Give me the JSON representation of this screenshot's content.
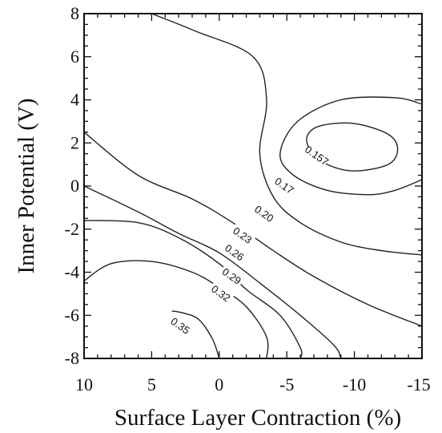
{
  "chart_data": {
    "type": "contour",
    "title": "",
    "xlabel": "Surface Layer Contraction (%)",
    "ylabel": "Inner Potential (V)",
    "xlim": [
      10,
      -15
    ],
    "ylim": [
      -8,
      8
    ],
    "x_ticks": [
      "10",
      "5",
      "0",
      "-5",
      "-10",
      "-15"
    ],
    "y_ticks": [
      "8",
      "6",
      "4",
      "2",
      "0",
      "-2",
      "-4",
      "-6",
      "-8"
    ],
    "grid": false,
    "contours": [
      {
        "level": "0.157",
        "points": [
          [
            -6.5,
            2.3
          ],
          [
            -7.5,
            2.8
          ],
          [
            -10,
            2.9
          ],
          [
            -12.5,
            2.4
          ],
          [
            -13.2,
            1.7
          ],
          [
            -12.5,
            1.0
          ],
          [
            -10,
            0.7
          ],
          [
            -8,
            1.0
          ],
          [
            -6.8,
            1.6
          ],
          [
            -6.5,
            2.3
          ]
        ],
        "closed": true,
        "label_at": [
          -7.2,
          1.4
        ]
      },
      {
        "level": "0.17",
        "points": [
          [
            -15,
            3.8
          ],
          [
            -13,
            4.1
          ],
          [
            -9,
            4.0
          ],
          [
            -5.8,
            3.0
          ],
          [
            -4.5,
            1.5
          ],
          [
            -5.5,
            0.5
          ],
          [
            -8,
            -0.2
          ],
          [
            -11,
            -0.4
          ],
          [
            -13,
            -0.2
          ],
          [
            -15,
            0.3
          ]
        ],
        "closed": false,
        "label_at": [
          -4.8,
          0.0
        ]
      },
      {
        "level": "0.20",
        "points": [
          [
            5,
            8
          ],
          [
            1.8,
            7.2
          ],
          [
            -2.5,
            6.0
          ],
          [
            -3.5,
            4.0
          ],
          [
            -3,
            1.5
          ],
          [
            -4,
            -0.5
          ],
          [
            -6,
            -1.7
          ],
          [
            -9,
            -2.6
          ],
          [
            -12,
            -3.0
          ],
          [
            -15,
            -3.2
          ]
        ],
        "closed": false,
        "label_at": [
          -3.3,
          -1.3
        ]
      },
      {
        "level": "0.23",
        "points": [
          [
            10,
            2.5
          ],
          [
            6,
            0.5
          ],
          [
            2,
            -0.6
          ],
          [
            -1,
            -1.7
          ],
          [
            -4,
            -3.0
          ],
          [
            -7,
            -4.2
          ],
          [
            -11,
            -5.5
          ],
          [
            -15,
            -6.5
          ]
        ],
        "closed": false,
        "label_at": [
          -1.7,
          -2.3
        ]
      },
      {
        "level": "0.26",
        "points": [
          [
            10,
            0.0
          ],
          [
            6,
            -1.2
          ],
          [
            3,
            -2.2
          ],
          [
            0,
            -3.1
          ],
          [
            -3,
            -4.5
          ],
          [
            -6,
            -6.0
          ],
          [
            -8.5,
            -7.4
          ],
          [
            -9,
            -8
          ]
        ],
        "closed": false,
        "label_at": [
          -1.1,
          -3.1
        ]
      },
      {
        "level": "0.29",
        "points": [
          [
            10,
            -1.6
          ],
          [
            6,
            -1.7
          ],
          [
            3,
            -2.4
          ],
          [
            0,
            -3.6
          ],
          [
            -2,
            -4.8
          ],
          [
            -4.5,
            -6.0
          ],
          [
            -6,
            -7.5
          ],
          [
            -6,
            -8
          ]
        ],
        "closed": false,
        "label_at": [
          -0.9,
          -4.2
        ]
      },
      {
        "level": "0.32",
        "points": [
          [
            10,
            -4.4
          ],
          [
            8,
            -3.6
          ],
          [
            5,
            -3.5
          ],
          [
            2,
            -4.0
          ],
          [
            0,
            -4.7
          ],
          [
            -2,
            -5.6
          ],
          [
            -3.5,
            -7.0
          ],
          [
            -3.5,
            -8
          ]
        ],
        "closed": false,
        "label_at": [
          -0.1,
          -5.0
        ]
      },
      {
        "level": "0.35",
        "points": [
          [
            3.5,
            -5.8
          ],
          [
            2.6,
            -5.9
          ],
          [
            1.5,
            -6.2
          ],
          [
            0.5,
            -7.1
          ],
          [
            0,
            -8
          ]
        ],
        "closed": false,
        "label_at": [
          2.9,
          -6.5
        ]
      }
    ]
  }
}
